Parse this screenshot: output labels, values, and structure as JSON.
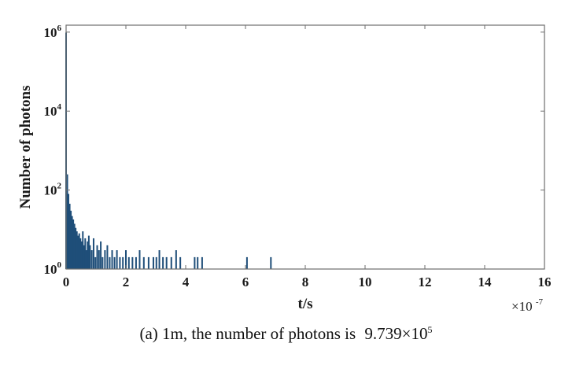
{
  "chart_data": {
    "type": "bar",
    "title": "",
    "xlabel": "t/s",
    "ylabel": "Number of photons",
    "x_multiplier_label": "×10",
    "x_multiplier_exponent": "-7",
    "x_scale_factor": 1e-07,
    "xlim": [
      0,
      16
    ],
    "xticks": [
      "0",
      "2",
      "4",
      "6",
      "8",
      "10",
      "12",
      "14",
      "16"
    ],
    "yscale": "log",
    "ylim": [
      1,
      1500000
    ],
    "yticks": [
      {
        "value": 1,
        "base": "10",
        "exp": "0"
      },
      {
        "value": 100,
        "base": "10",
        "exp": "2"
      },
      {
        "value": 10000,
        "base": "10",
        "exp": "4"
      },
      {
        "value": 1000000,
        "base": "10",
        "exp": "6"
      }
    ],
    "grid": false,
    "bar_color": "#1f4e79",
    "x": [
      0.0,
      0.04,
      0.08,
      0.12,
      0.16,
      0.2,
      0.24,
      0.28,
      0.32,
      0.36,
      0.4,
      0.44,
      0.48,
      0.52,
      0.56,
      0.6,
      0.64,
      0.68,
      0.72,
      0.76,
      0.8,
      0.86,
      0.92,
      0.98,
      1.04,
      1.1,
      1.16,
      1.22,
      1.3,
      1.38,
      1.46,
      1.54,
      1.62,
      1.7,
      1.8,
      1.9,
      2.0,
      2.1,
      2.22,
      2.34,
      2.46,
      2.6,
      2.76,
      2.92,
      3.02,
      3.12,
      3.24,
      3.36,
      3.52,
      3.68,
      3.82,
      4.3,
      4.4,
      4.55,
      6.05,
      6.85
    ],
    "values": [
      970000,
      250,
      80,
      45,
      30,
      22,
      18,
      14,
      11,
      9,
      7,
      8,
      6,
      5,
      9,
      4,
      6,
      3,
      5,
      7,
      4,
      3,
      6,
      2,
      4,
      3,
      5,
      2,
      3,
      4,
      2,
      3,
      2,
      3,
      2,
      2,
      3,
      2,
      2,
      2,
      3,
      2,
      2,
      2,
      2,
      3,
      2,
      2,
      2,
      3,
      2,
      2,
      2,
      2,
      2,
      2
    ]
  },
  "caption": {
    "prefix": "(a) 1m, the number of photons is",
    "value": "9.739×10",
    "exponent": "5"
  }
}
